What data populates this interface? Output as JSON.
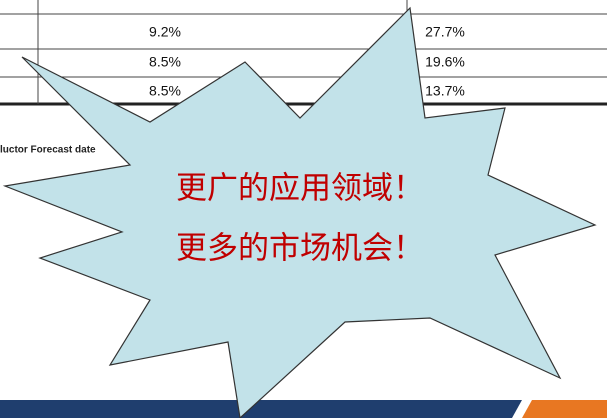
{
  "table": {
    "rows": [
      [
        "9.2%",
        "27.7%"
      ],
      [
        "8.5%",
        "19.6%"
      ],
      [
        "8.5%",
        "13.7%"
      ]
    ]
  },
  "source_note": "luctor Forecast date",
  "callout": {
    "lines": [
      "更广的应用领域！",
      "更多的市场机会！"
    ]
  }
}
